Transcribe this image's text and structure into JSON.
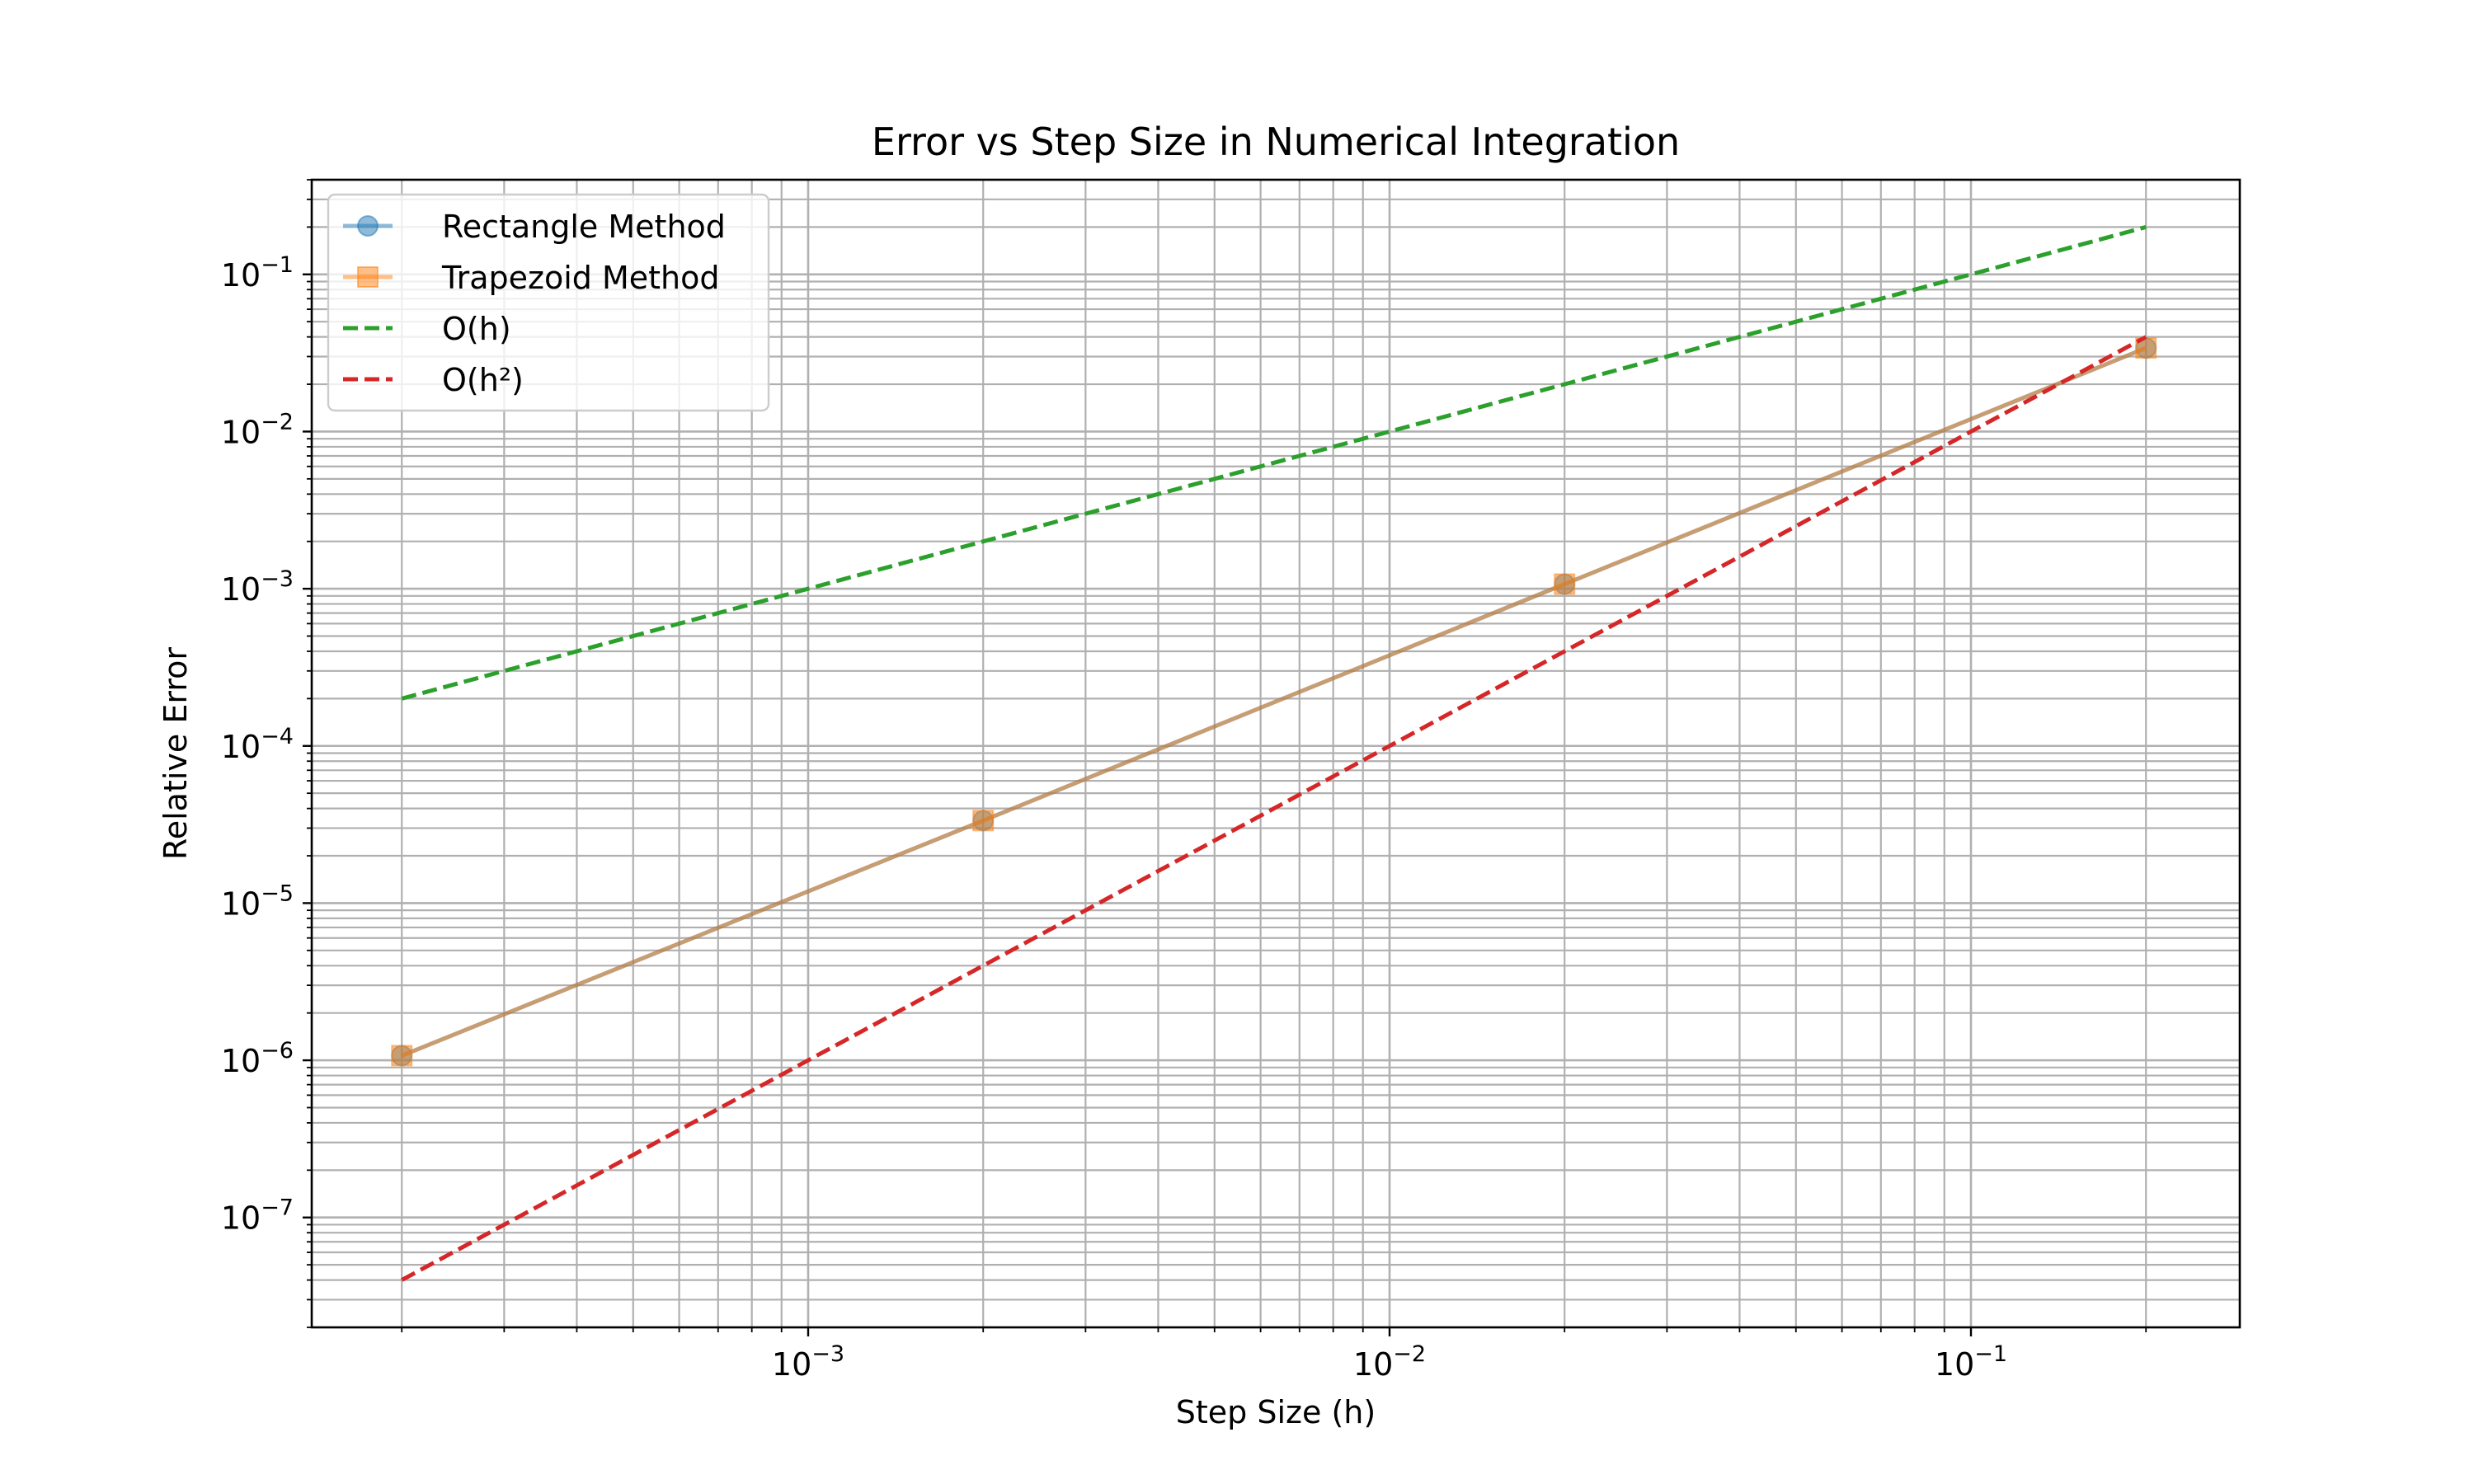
{
  "chart_data": {
    "type": "line",
    "title": "Error vs Step Size in Numerical Integration",
    "xlabel": "Step Size (h)",
    "ylabel": "Relative Error",
    "xscale": "log",
    "yscale": "log",
    "xlim": [
      0.00014,
      0.29
    ],
    "ylim": [
      2e-08,
      0.4
    ],
    "grid": "both (major and minor)",
    "legend_position": "upper-left",
    "x_ticks": [
      {
        "value": 0.001,
        "base": "10",
        "exp": "−3"
      },
      {
        "value": 0.01,
        "base": "10",
        "exp": "−2"
      },
      {
        "value": 0.1,
        "base": "10",
        "exp": "−1"
      }
    ],
    "y_ticks": [
      {
        "value": 1e-07,
        "base": "10",
        "exp": "−7"
      },
      {
        "value": 1e-06,
        "base": "10",
        "exp": "−6"
      },
      {
        "value": 1e-05,
        "base": "10",
        "exp": "−5"
      },
      {
        "value": 0.0001,
        "base": "10",
        "exp": "−4"
      },
      {
        "value": 0.001,
        "base": "10",
        "exp": "−3"
      },
      {
        "value": 0.01,
        "base": "10",
        "exp": "−2"
      },
      {
        "value": 0.1,
        "base": "10",
        "exp": "−1"
      }
    ],
    "series": [
      {
        "name": "Rectangle Method",
        "color": "#1f77b4",
        "alpha": 0.5,
        "marker": "circle",
        "dash": "solid",
        "x": [
          0.0002,
          0.002,
          0.02,
          0.2
        ],
        "y": [
          1.07e-06,
          3.35e-05,
          0.00107,
          0.034
        ]
      },
      {
        "name": "Trapezoid Method",
        "color": "#ff7f0e",
        "alpha": 0.5,
        "marker": "square",
        "dash": "solid",
        "x": [
          0.0002,
          0.002,
          0.02,
          0.2
        ],
        "y": [
          1.07e-06,
          3.35e-05,
          0.00107,
          0.034
        ]
      },
      {
        "name": "O(h)",
        "color": "#2ca02c",
        "alpha": 1,
        "marker": "none",
        "dash": "dashed",
        "x": [
          0.0002,
          0.2
        ],
        "y": [
          0.0002,
          0.2
        ]
      },
      {
        "name": "O(h²)",
        "color": "#d62728",
        "alpha": 1,
        "marker": "none",
        "dash": "dashed",
        "x": [
          0.0002,
          0.2
        ],
        "y": [
          4e-08,
          0.04
        ]
      }
    ]
  }
}
